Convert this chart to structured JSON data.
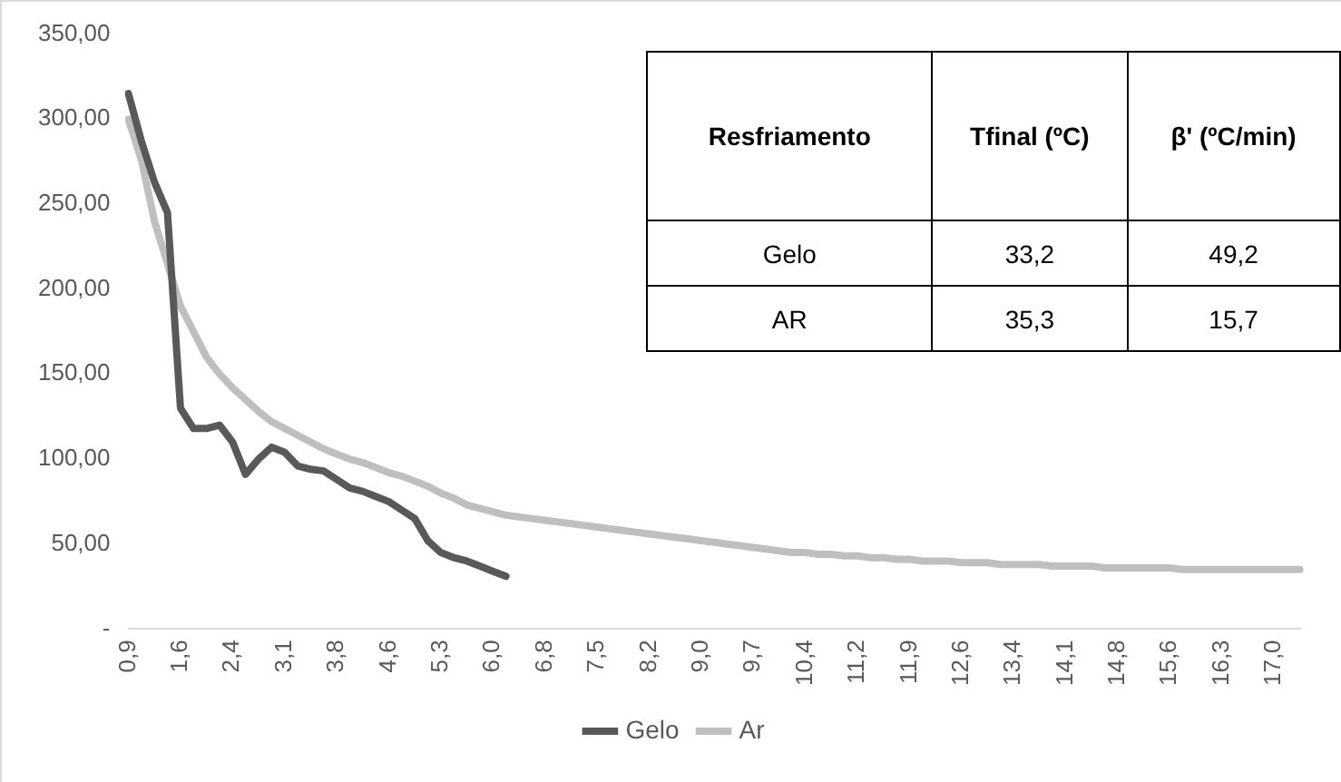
{
  "chart_data": {
    "type": "line",
    "categories": [
      "0,9",
      null,
      null,
      null,
      "1,6",
      null,
      null,
      null,
      "2,4",
      null,
      null,
      null,
      "3,1",
      null,
      null,
      null,
      "3,8",
      null,
      null,
      null,
      "4,6",
      null,
      null,
      null,
      "5,3",
      null,
      null,
      null,
      "6,0",
      null,
      null,
      null,
      "6,8",
      null,
      null,
      null,
      "7,5",
      null,
      null,
      null,
      "8,2",
      null,
      null,
      null,
      "9,0",
      null,
      null,
      null,
      "9,7",
      null,
      null,
      null,
      "10,4",
      null,
      null,
      null,
      "11,2",
      null,
      null,
      null,
      "11,9",
      null,
      null,
      null,
      "12,6",
      null,
      null,
      null,
      "13,4",
      null,
      null,
      null,
      "14,1",
      null,
      null,
      null,
      "14,8",
      null,
      null,
      null,
      "15,6",
      null,
      null,
      null,
      "16,3",
      null,
      null,
      null,
      "17,0",
      null,
      null
    ],
    "series": [
      {
        "name": "Gelo",
        "color": "#595959",
        "values": [
          315,
          287,
          263,
          245,
          130,
          118,
          118,
          120,
          110,
          91,
          100,
          107,
          104,
          96,
          94,
          93,
          88,
          83,
          81,
          78,
          75,
          70,
          65,
          52,
          45,
          42,
          40,
          37,
          34,
          31,
          null,
          null,
          null,
          null,
          null,
          null,
          null,
          null,
          null,
          null,
          null,
          null,
          null,
          null,
          null,
          null,
          null,
          null,
          null,
          null,
          null,
          null,
          null,
          null,
          null,
          null,
          null,
          null,
          null,
          null,
          null,
          null,
          null,
          null,
          null,
          null,
          null,
          null,
          null,
          null,
          null,
          null,
          null,
          null,
          null,
          null,
          null,
          null,
          null,
          null,
          null,
          null,
          null,
          null,
          null,
          null,
          null,
          null,
          null,
          null,
          null
        ]
      },
      {
        "name": "Ar",
        "color": "#bfbfbf",
        "values": [
          300,
          276,
          240,
          215,
          190,
          175,
          160,
          150,
          142,
          135,
          128,
          122,
          118,
          114,
          110,
          106,
          103,
          100,
          98,
          95,
          92,
          90,
          87,
          84,
          80,
          77,
          73,
          71,
          69,
          67,
          66,
          65,
          64,
          63,
          62,
          61,
          60,
          59,
          58,
          57,
          56,
          55,
          54,
          53,
          52,
          51,
          50,
          49,
          48,
          47,
          46,
          45,
          45,
          44,
          44,
          43,
          43,
          42,
          42,
          41,
          41,
          40,
          40,
          40,
          39,
          39,
          39,
          38,
          38,
          38,
          38,
          37,
          37,
          37,
          37,
          36,
          36,
          36,
          36,
          36,
          36,
          35,
          35,
          35,
          35,
          35,
          35,
          35,
          35,
          35,
          35
        ]
      }
    ],
    "ylim": [
      0,
      350
    ],
    "yticks": [
      {
        "value": 0,
        "label": "-"
      },
      {
        "value": 50,
        "label": "50,00"
      },
      {
        "value": 100,
        "label": "100,00"
      },
      {
        "value": 150,
        "label": "150,00"
      },
      {
        "value": 200,
        "label": "200,00"
      },
      {
        "value": 250,
        "label": "250,00"
      },
      {
        "value": 300,
        "label": "300,00"
      },
      {
        "value": 350,
        "label": "350,00"
      }
    ],
    "legend": "bottom",
    "marker": "none",
    "line_style": "solid",
    "annotations": [
      "Resfriamento",
      "Tfinal (ºC)",
      "β' (ºC/min)",
      "Gelo",
      "33,2",
      "49,2",
      "AR",
      "35,3",
      "15,7"
    ]
  }
}
